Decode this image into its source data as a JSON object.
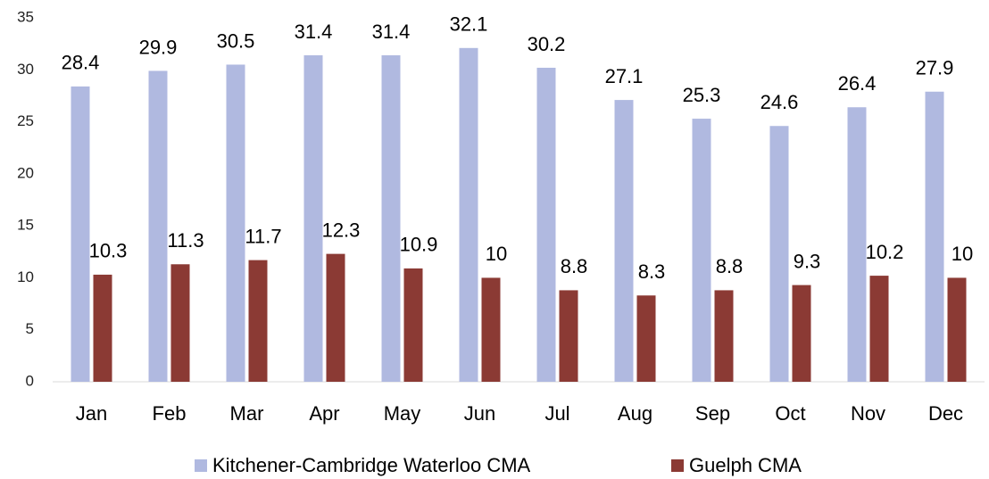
{
  "chart_data": {
    "type": "bar",
    "categories": [
      "Jan",
      "Feb",
      "Mar",
      "Apr",
      "May",
      "Jun",
      "Jul",
      "Aug",
      "Sep",
      "Oct",
      "Nov",
      "Dec"
    ],
    "series": [
      {
        "name": "Kitchener-Cambridge Waterloo CMA",
        "color": "#b0b9e0",
        "values": [
          28.4,
          29.9,
          30.5,
          31.4,
          31.4,
          32.1,
          30.2,
          27.1,
          25.3,
          24.6,
          26.4,
          27.9
        ]
      },
      {
        "name": "Guelph CMA",
        "color": "#8b3a34",
        "values": [
          10.3,
          11.3,
          11.7,
          12.3,
          10.9,
          10,
          8.8,
          8.3,
          8.8,
          9.3,
          10.2,
          10
        ]
      }
    ],
    "ylim": [
      0,
      35
    ],
    "yticks": [
      0,
      5,
      10,
      15,
      20,
      25,
      30,
      35
    ],
    "grid": false,
    "legend": "bottom"
  }
}
